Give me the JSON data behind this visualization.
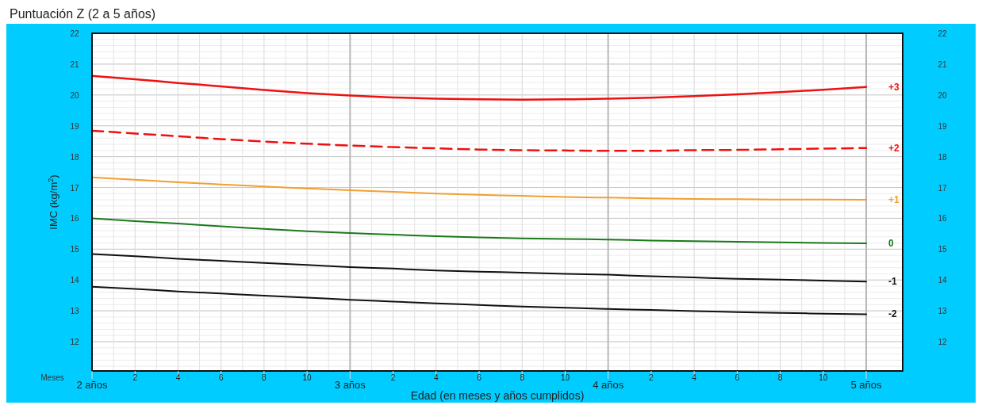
{
  "chart_data": {
    "type": "line",
    "title": "Puntuación Z (2 a 5 años)",
    "xlabel": "Edad (en meses y años cumplidos)",
    "ylabel": "IMC (kg/m$^{2}$)",
    "annotations": [
      "Meses"
    ],
    "categories": [
      "2 años",
      "2",
      "4",
      "6",
      "8",
      "10",
      "3 años",
      "2",
      "4",
      "6",
      "8",
      "10",
      "4 años",
      "2",
      "4",
      "6",
      "8",
      "10",
      "5 años"
    ],
    "ylim": [
      11.05,
      22
    ],
    "yticks": [
      12,
      13,
      14,
      15,
      16,
      17,
      18,
      19,
      20,
      21,
      22
    ],
    "y2lim": [
      11.05,
      22
    ],
    "y2ticks": [
      12,
      13,
      14,
      15,
      16,
      17,
      18,
      19,
      20,
      21,
      22
    ],
    "grid": true,
    "marker": "none",
    "series": [
      {
        "name": "+3",
        "color": "#ee1111",
        "line_style": "solid",
        "values": [
          20.62,
          20.51,
          20.39,
          20.28,
          20.16,
          20.06,
          19.98,
          19.92,
          19.88,
          19.86,
          19.85,
          19.86,
          19.88,
          19.91,
          19.96,
          20.02,
          20.09,
          20.17,
          20.26
        ]
      },
      {
        "name": "+2",
        "color": "#ee1111",
        "line_style": "dashed",
        "values": [
          18.84,
          18.75,
          18.66,
          18.57,
          18.49,
          18.42,
          18.36,
          18.31,
          18.27,
          18.23,
          18.21,
          18.2,
          18.19,
          18.19,
          18.21,
          18.22,
          18.24,
          18.26,
          18.28
        ]
      },
      {
        "name": "+1",
        "color": "#f0a030",
        "line_style": "solid",
        "values": [
          17.33,
          17.25,
          17.17,
          17.1,
          17.03,
          16.97,
          16.91,
          16.86,
          16.8,
          16.76,
          16.73,
          16.69,
          16.67,
          16.65,
          16.63,
          16.62,
          16.61,
          16.61,
          16.6
        ]
      },
      {
        "name": "0",
        "color": "#1a7a1a",
        "line_style": "solid",
        "values": [
          16.0,
          15.91,
          15.83,
          15.74,
          15.66,
          15.58,
          15.52,
          15.47,
          15.42,
          15.38,
          15.35,
          15.33,
          15.31,
          15.28,
          15.26,
          15.24,
          15.22,
          15.2,
          15.19
        ]
      },
      {
        "name": "-1",
        "color": "#111111",
        "line_style": "solid",
        "values": [
          14.84,
          14.77,
          14.69,
          14.62,
          14.55,
          14.49,
          14.42,
          14.37,
          14.31,
          14.27,
          14.24,
          14.2,
          14.17,
          14.12,
          14.08,
          14.04,
          14.01,
          13.98,
          13.95
        ]
      },
      {
        "name": "-2",
        "color": "#111111",
        "line_style": "solid",
        "values": [
          13.78,
          13.71,
          13.63,
          13.56,
          13.49,
          13.43,
          13.36,
          13.3,
          13.24,
          13.19,
          13.14,
          13.1,
          13.06,
          13.03,
          12.99,
          12.96,
          12.93,
          12.91,
          12.89
        ]
      }
    ]
  }
}
